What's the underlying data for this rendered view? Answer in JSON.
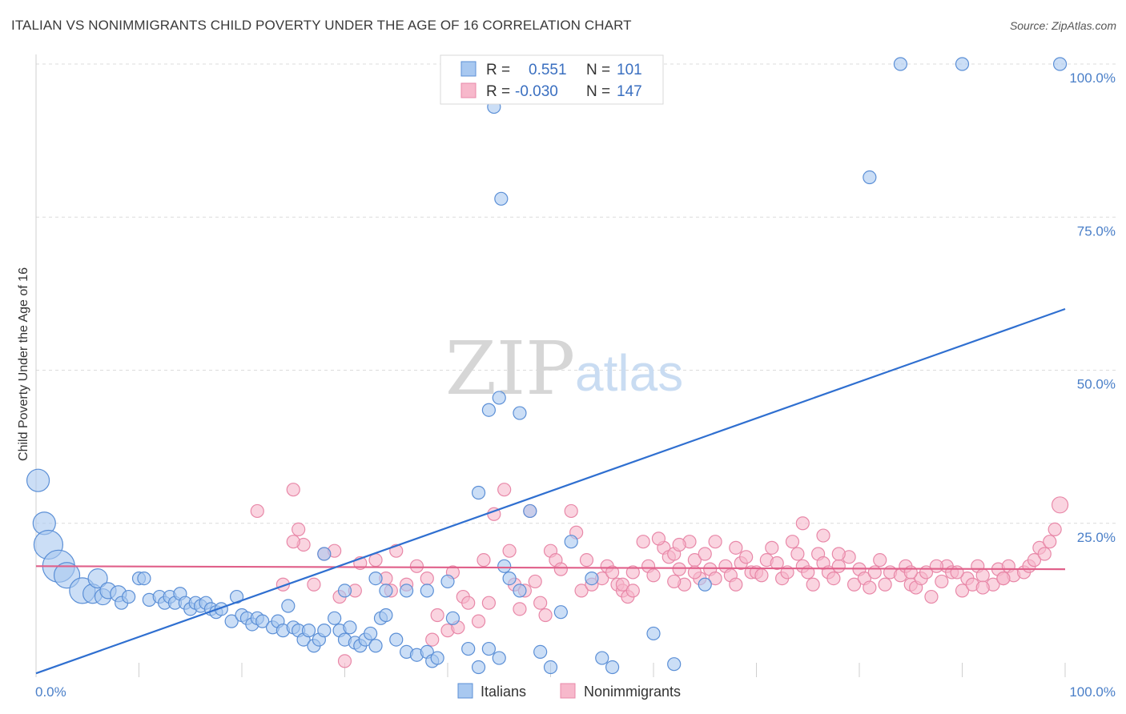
{
  "title": "ITALIAN VS NONIMMIGRANTS CHILD POVERTY UNDER THE AGE OF 16 CORRELATION CHART",
  "source": "Source: ZipAtlas.com",
  "watermark": {
    "zip": "ZIP",
    "atlas": "atlas"
  },
  "colors": {
    "italians_fill": "#a8c8f0",
    "italians_stroke": "#5b8fd6",
    "italians_line": "#2f6fd0",
    "nonimmigrants_fill": "#f7b8cb",
    "nonimmigrants_stroke": "#e888a8",
    "nonimmigrants_line": "#e0608a",
    "axis_text": "#4a7fc8",
    "grid": "#dcdcdc"
  },
  "legend_top": {
    "rows": [
      {
        "r_label": "R =",
        "r_value": "0.551",
        "n_label": "N =",
        "n_value": "101"
      },
      {
        "r_label": "R =",
        "r_value": "-0.030",
        "n_label": "N =",
        "n_value": "147"
      }
    ]
  },
  "legend_bottom": {
    "items": [
      "Italians",
      "Nonimmigrants"
    ]
  },
  "chart_data": {
    "type": "scatter",
    "title": "ITALIAN VS NONIMMIGRANTS CHILD POVERTY UNDER THE AGE OF 16 CORRELATION CHART",
    "xlabel": "",
    "ylabel": "Child Poverty Under the Age of 16",
    "xlim": [
      0,
      100
    ],
    "ylim": [
      0,
      100
    ],
    "x_tick_labels": [
      "0.0%",
      "100.0%"
    ],
    "y_tick_labels": [
      "25.0%",
      "50.0%",
      "75.0%",
      "100.0%"
    ],
    "y_ticks": [
      25,
      50,
      75,
      100
    ],
    "grid": true,
    "legend_position": "top-center",
    "series": [
      {
        "name": "Italians",
        "trend": {
          "x": [
            0,
            100
          ],
          "y": [
            0.5,
            60
          ]
        },
        "points": [
          [
            0.2,
            32,
            14
          ],
          [
            0.8,
            25,
            14
          ],
          [
            1.2,
            21.5,
            18
          ],
          [
            2.2,
            18,
            20
          ],
          [
            3,
            16.5,
            16
          ],
          [
            4.5,
            14,
            16
          ],
          [
            5.5,
            13.5,
            12
          ],
          [
            6,
            16,
            12
          ],
          [
            6.5,
            13,
            10
          ],
          [
            7,
            14,
            10
          ],
          [
            8,
            13.5,
            10
          ],
          [
            8.3,
            12,
            8
          ],
          [
            9,
            13,
            8
          ],
          [
            10,
            16,
            8
          ],
          [
            10.5,
            16,
            8
          ],
          [
            11,
            12.5,
            8
          ],
          [
            12,
            13,
            8
          ],
          [
            12.5,
            12,
            8
          ],
          [
            13,
            13,
            8
          ],
          [
            13.5,
            12,
            8
          ],
          [
            14,
            13.5,
            8
          ],
          [
            14.5,
            12,
            8
          ],
          [
            15,
            11,
            8
          ],
          [
            15.5,
            12,
            8
          ],
          [
            16,
            11.5,
            8
          ],
          [
            16.5,
            12,
            8
          ],
          [
            17,
            11,
            8
          ],
          [
            17.5,
            10.5,
            8
          ],
          [
            18,
            11,
            8
          ],
          [
            19,
            9,
            8
          ],
          [
            19.5,
            13,
            8
          ],
          [
            20,
            10,
            8
          ],
          [
            20.5,
            9.5,
            8
          ],
          [
            21,
            8.5,
            8
          ],
          [
            21.5,
            9.5,
            8
          ],
          [
            22,
            9,
            8
          ],
          [
            23,
            8,
            8
          ],
          [
            23.5,
            9,
            8
          ],
          [
            24,
            7.5,
            8
          ],
          [
            24.5,
            11.5,
            8
          ],
          [
            25,
            8,
            8
          ],
          [
            25.5,
            7.5,
            8
          ],
          [
            26,
            6,
            8
          ],
          [
            26.5,
            7.5,
            8
          ],
          [
            27,
            5,
            8
          ],
          [
            27.5,
            6,
            8
          ],
          [
            28,
            7.5,
            8
          ],
          [
            29,
            9.5,
            8
          ],
          [
            29.5,
            7.5,
            8
          ],
          [
            30,
            6,
            8
          ],
          [
            30.5,
            8,
            8
          ],
          [
            31,
            5.5,
            8
          ],
          [
            31.5,
            5,
            8
          ],
          [
            32,
            6,
            8
          ],
          [
            32.5,
            7,
            8
          ],
          [
            33,
            5,
            8
          ],
          [
            33.5,
            9.5,
            8
          ],
          [
            34,
            10,
            8
          ],
          [
            35,
            6,
            8
          ],
          [
            36,
            4,
            8
          ],
          [
            37,
            3.5,
            8
          ],
          [
            38,
            4,
            8
          ],
          [
            38.5,
            2.5,
            8
          ],
          [
            39,
            3,
            8
          ],
          [
            40,
            15.5,
            8
          ],
          [
            40.5,
            9.5,
            8
          ],
          [
            42,
            4.5,
            8
          ],
          [
            43,
            1.5,
            8
          ],
          [
            44,
            4.5,
            8
          ],
          [
            45,
            3,
            8
          ],
          [
            47,
            43,
            8
          ],
          [
            48,
            27,
            8
          ],
          [
            49,
            4,
            8
          ],
          [
            50,
            1.5,
            8
          ],
          [
            51,
            10.5,
            8
          ],
          [
            45,
            45.5,
            8
          ],
          [
            44,
            43.5,
            8
          ],
          [
            45.5,
            18,
            8
          ],
          [
            45.2,
            78,
            8
          ],
          [
            43,
            30,
            8
          ],
          [
            44.5,
            93,
            8
          ],
          [
            52,
            22,
            8
          ],
          [
            54,
            16,
            8
          ],
          [
            55,
            3,
            8
          ],
          [
            56,
            1.5,
            8
          ],
          [
            60,
            7,
            8
          ],
          [
            62,
            2,
            8
          ],
          [
            65,
            15,
            8
          ],
          [
            84,
            100,
            8
          ],
          [
            90,
            100,
            8
          ],
          [
            81,
            81.5,
            8
          ],
          [
            99.5,
            100,
            8
          ],
          [
            28,
            20,
            8
          ],
          [
            30,
            14,
            8
          ],
          [
            34,
            14,
            8
          ],
          [
            36,
            14,
            8
          ],
          [
            33,
            16,
            8
          ],
          [
            38,
            14,
            8
          ],
          [
            46,
            16,
            8
          ],
          [
            47,
            14,
            8
          ]
        ]
      },
      {
        "name": "Nonimmigrants",
        "trend": {
          "x": [
            0,
            100
          ],
          "y": [
            18,
            17.5
          ]
        },
        "points": [
          [
            21.5,
            27,
            8
          ],
          [
            25,
            30.5,
            8
          ],
          [
            25.5,
            24,
            8
          ],
          [
            26,
            21.5,
            8
          ],
          [
            25,
            22,
            8
          ],
          [
            24,
            15,
            8
          ],
          [
            27,
            15,
            8
          ],
          [
            28,
            20,
            8
          ],
          [
            29,
            20.5,
            8
          ],
          [
            29.5,
            13,
            8
          ],
          [
            31,
            14,
            8
          ],
          [
            31.5,
            18.5,
            8
          ],
          [
            30,
            2.5,
            8
          ],
          [
            33,
            19,
            8
          ],
          [
            34,
            16,
            8
          ],
          [
            34.5,
            14,
            8
          ],
          [
            35,
            20.5,
            8
          ],
          [
            36,
            15,
            8
          ],
          [
            37,
            18,
            8
          ],
          [
            38,
            16,
            8
          ],
          [
            38.5,
            6,
            8
          ],
          [
            39,
            10,
            8
          ],
          [
            40,
            7.5,
            8
          ],
          [
            40.5,
            17,
            8
          ],
          [
            41,
            8,
            8
          ],
          [
            41.5,
            13,
            8
          ],
          [
            42,
            12,
            8
          ],
          [
            43,
            9,
            8
          ],
          [
            43.5,
            19,
            8
          ],
          [
            44,
            12,
            8
          ],
          [
            44.5,
            26.5,
            8
          ],
          [
            45.5,
            30.5,
            8
          ],
          [
            46,
            20.5,
            8
          ],
          [
            46.5,
            15,
            8
          ],
          [
            47,
            11,
            8
          ],
          [
            47.5,
            14,
            8
          ],
          [
            48,
            27,
            8
          ],
          [
            48.5,
            15.5,
            8
          ],
          [
            49,
            12,
            8
          ],
          [
            49.5,
            10,
            8
          ],
          [
            50,
            20.5,
            8
          ],
          [
            50.5,
            19,
            8
          ],
          [
            51,
            17.5,
            8
          ],
          [
            52,
            27,
            8
          ],
          [
            52.5,
            23.5,
            8
          ],
          [
            53,
            14,
            8
          ],
          [
            53.5,
            19,
            8
          ],
          [
            54,
            15,
            8
          ],
          [
            55,
            16,
            8
          ],
          [
            55.5,
            18,
            8
          ],
          [
            56,
            17,
            8
          ],
          [
            56.5,
            15,
            8
          ],
          [
            57,
            14,
            8
          ],
          [
            57.5,
            13,
            8
          ],
          [
            58,
            17,
            8
          ],
          [
            59,
            22,
            8
          ],
          [
            59.5,
            18,
            8
          ],
          [
            60,
            16.5,
            8
          ],
          [
            61,
            21,
            8
          ],
          [
            61.5,
            19.5,
            8
          ],
          [
            62,
            20,
            8
          ],
          [
            62.5,
            17.5,
            8
          ],
          [
            63,
            15,
            8
          ],
          [
            63.5,
            22,
            8
          ],
          [
            64,
            19,
            8
          ],
          [
            64.5,
            16,
            8
          ],
          [
            65,
            20,
            8
          ],
          [
            65.5,
            17.5,
            8
          ],
          [
            66,
            16,
            8
          ],
          [
            67,
            18,
            8
          ],
          [
            67.5,
            16.5,
            8
          ],
          [
            68,
            15,
            8
          ],
          [
            68.5,
            18.5,
            8
          ],
          [
            69,
            19.5,
            8
          ],
          [
            69.5,
            17,
            8
          ],
          [
            70,
            17,
            8
          ],
          [
            70.5,
            16.5,
            8
          ],
          [
            71,
            19,
            8
          ],
          [
            71.5,
            21,
            8
          ],
          [
            72,
            18.5,
            8
          ],
          [
            72.5,
            16,
            8
          ],
          [
            73,
            17,
            8
          ],
          [
            73.5,
            22,
            8
          ],
          [
            74,
            20,
            8
          ],
          [
            74.5,
            18,
            8
          ],
          [
            75,
            17,
            8
          ],
          [
            75.5,
            15,
            8
          ],
          [
            76,
            20,
            8
          ],
          [
            76.5,
            18.5,
            8
          ],
          [
            77,
            17,
            8
          ],
          [
            77.5,
            16,
            8
          ],
          [
            78,
            18,
            8
          ],
          [
            79,
            19.5,
            8
          ],
          [
            79.5,
            15,
            8
          ],
          [
            80,
            17.5,
            8
          ],
          [
            80.5,
            16,
            8
          ],
          [
            81,
            14.5,
            8
          ],
          [
            81.5,
            17,
            8
          ],
          [
            82,
            19,
            8
          ],
          [
            82.5,
            15,
            8
          ],
          [
            83,
            17,
            8
          ],
          [
            84,
            16.5,
            8
          ],
          [
            84.5,
            18,
            8
          ],
          [
            85,
            15,
            8
          ],
          [
            85.5,
            14.5,
            8
          ],
          [
            86,
            16,
            8
          ],
          [
            86.5,
            17,
            8
          ],
          [
            87,
            13,
            8
          ],
          [
            88,
            15.5,
            8
          ],
          [
            88.5,
            18,
            8
          ],
          [
            89,
            17,
            8
          ],
          [
            90,
            14,
            8
          ],
          [
            90.5,
            16,
            8
          ],
          [
            91,
            15,
            8
          ],
          [
            91.5,
            18,
            8
          ],
          [
            92,
            16.5,
            8
          ],
          [
            93,
            15,
            8
          ],
          [
            93.5,
            17.5,
            8
          ],
          [
            94,
            16,
            8
          ],
          [
            94.5,
            18,
            8
          ],
          [
            95,
            16.5,
            8
          ],
          [
            96,
            17,
            8
          ],
          [
            96.5,
            18,
            8
          ],
          [
            97,
            19,
            8
          ],
          [
            97.5,
            21,
            8
          ],
          [
            98,
            20,
            8
          ],
          [
            98.5,
            22,
            8
          ],
          [
            99,
            24,
            8
          ],
          [
            99.5,
            28,
            10
          ],
          [
            74.5,
            25,
            8
          ],
          [
            60.5,
            22.5,
            8
          ],
          [
            62.5,
            21.5,
            8
          ],
          [
            66,
            22,
            8
          ],
          [
            68,
            21,
            8
          ],
          [
            76.5,
            23,
            8
          ],
          [
            57,
            15,
            8
          ],
          [
            58,
            14,
            8
          ],
          [
            62,
            15.5,
            8
          ],
          [
            64,
            17,
            8
          ],
          [
            78,
            20,
            8
          ],
          [
            85,
            17,
            8
          ],
          [
            87.5,
            18,
            8
          ],
          [
            89.5,
            17,
            8
          ],
          [
            92,
            14.5,
            8
          ],
          [
            94,
            16,
            8
          ]
        ]
      }
    ]
  }
}
